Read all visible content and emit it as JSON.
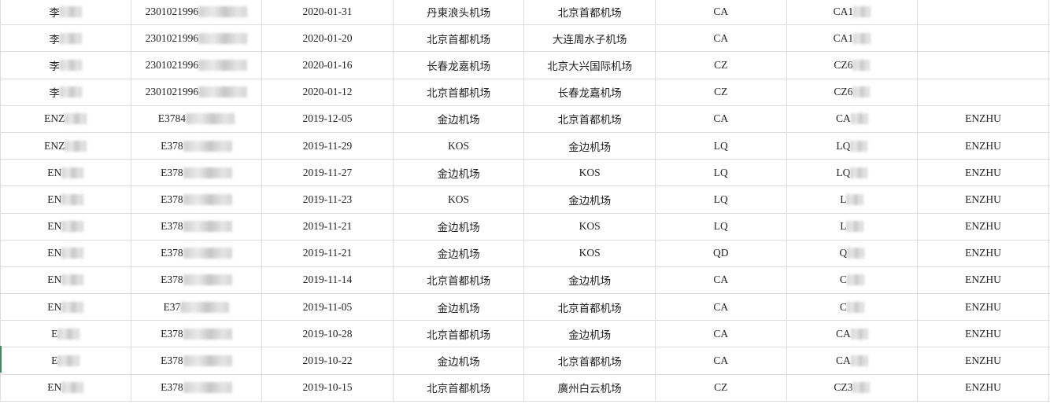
{
  "columns_count": 8,
  "redacted_columns": [
    0,
    1,
    6
  ],
  "rows": [
    [
      "李",
      "2301021996",
      "2020-01-31",
      "丹東浪头机场",
      "北京首都机场",
      "CA",
      "CA1",
      ""
    ],
    [
      "李",
      "2301021996",
      "2020-01-20",
      "北京首都机场",
      "大连周水子机场",
      "CA",
      "CA1",
      ""
    ],
    [
      "李",
      "2301021996",
      "2020-01-16",
      "长春龙嘉机场",
      "北京大兴国际机场",
      "CZ",
      "CZ6",
      ""
    ],
    [
      "李",
      "2301021996",
      "2020-01-12",
      "北京首都机场",
      "长春龙嘉机场",
      "CZ",
      "CZ6",
      ""
    ],
    [
      "ENZ",
      "E3784",
      "2019-12-05",
      "金边机场",
      "北京首都机场",
      "CA",
      "CA",
      "ENZHU"
    ],
    [
      "ENZ",
      "E378",
      "2019-11-29",
      "KOS",
      "金边机场",
      "LQ",
      "LQ",
      "ENZHU"
    ],
    [
      "EN",
      "E378",
      "2019-11-27",
      "金边机场",
      "KOS",
      "LQ",
      "LQ",
      "ENZHU"
    ],
    [
      "EN",
      "E378",
      "2019-11-23",
      "KOS",
      "金边机场",
      "LQ",
      "L",
      "ENZHU"
    ],
    [
      "EN",
      "E378",
      "2019-11-21",
      "金边机场",
      "KOS",
      "LQ",
      "L",
      "ENZHU"
    ],
    [
      "EN",
      "E378",
      "2019-11-21",
      "金边机场",
      "KOS",
      "QD",
      "Q",
      "ENZHU"
    ],
    [
      "EN",
      "E378",
      "2019-11-14",
      "北京首都机场",
      "金边机场",
      "CA",
      "C",
      "ENZHU"
    ],
    [
      "EN",
      "E37",
      "2019-11-05",
      "金边机场",
      "北京首都机场",
      "CA",
      "C",
      "ENZHU"
    ],
    [
      "E",
      "E378",
      "2019-10-28",
      "北京首都机场",
      "金边机场",
      "CA",
      "CA",
      "ENZHU"
    ],
    [
      "E",
      "E378",
      "2019-10-22",
      "金边机场",
      "北京首都机场",
      "CA",
      "CA",
      "ENZHU"
    ],
    [
      "EN",
      "E378",
      "2019-10-15",
      "北京首都机场",
      "廣州白云机场",
      "CZ",
      "CZ3",
      "ENZHU"
    ]
  ]
}
